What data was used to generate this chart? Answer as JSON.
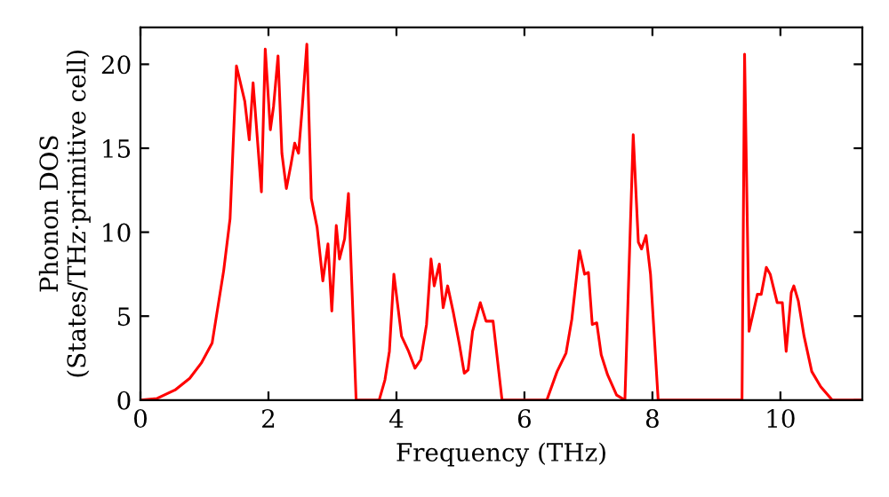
{
  "chart_data": {
    "type": "line",
    "xlabel": "Frequency (THz)",
    "ylabel": "Phonon DOS\n(States/THz·primitive cell)",
    "x": [
      0,
      0.26,
      0.54,
      0.77,
      0.95,
      1.12,
      1.3,
      1.4,
      1.5,
      1.63,
      1.7,
      1.76,
      1.89,
      1.95,
      2.03,
      2.08,
      2.15,
      2.21,
      2.28,
      2.35,
      2.41,
      2.47,
      2.53,
      2.6,
      2.67,
      2.76,
      2.85,
      2.93,
      2.99,
      3.06,
      3.11,
      3.19,
      3.25,
      3.37,
      3.73,
      3.82,
      3.89,
      3.96,
      4.08,
      4.19,
      4.29,
      4.38,
      4.47,
      4.54,
      4.59,
      4.67,
      4.73,
      4.8,
      4.89,
      4.98,
      5.06,
      5.12,
      5.19,
      5.31,
      5.4,
      5.51,
      5.65,
      6.35,
      6.51,
      6.65,
      6.74,
      6.86,
      6.94,
      7.0,
      7.06,
      7.13,
      7.2,
      7.3,
      7.44,
      7.57,
      7.7,
      7.78,
      7.83,
      7.9,
      7.97,
      8.09,
      9.4,
      9.44,
      9.51,
      9.64,
      9.7,
      9.78,
      9.84,
      9.95,
      10.03,
      10.09,
      10.17,
      10.21,
      10.28,
      10.37,
      10.49,
      10.63,
      10.81,
      11.28
    ],
    "series": [
      {
        "color": "#ff0000",
        "values": [
          0,
          0.1,
          0.6,
          1.3,
          2.2,
          3.4,
          7.7,
          10.8,
          19.9,
          17.8,
          15.5,
          18.9,
          12.4,
          20.9,
          16.1,
          17.5,
          20.5,
          14.7,
          12.6,
          14.0,
          15.3,
          14.7,
          17.5,
          21.2,
          12.0,
          10.3,
          7.1,
          9.3,
          5.3,
          10.4,
          8.4,
          9.6,
          12.3,
          0,
          0,
          1.2,
          2.9,
          7.5,
          3.8,
          2.9,
          1.9,
          2.4,
          4.5,
          8.4,
          6.8,
          8.1,
          5.5,
          6.8,
          5.2,
          3.4,
          1.6,
          1.8,
          4.1,
          5.8,
          4.7,
          4.7,
          0,
          0,
          1.7,
          2.8,
          4.8,
          8.9,
          7.5,
          7.6,
          4.5,
          4.6,
          2.7,
          1.5,
          0.3,
          0,
          15.8,
          9.4,
          9.0,
          9.8,
          7.5,
          0,
          0,
          20.6,
          4.1,
          6.3,
          6.3,
          7.9,
          7.5,
          5.8,
          5.8,
          2.9,
          6.4,
          6.8,
          5.9,
          3.8,
          1.7,
          0.8,
          0,
          0
        ]
      }
    ],
    "xlim": [
      0,
      11.28
    ],
    "ylim": [
      0,
      22.2
    ],
    "xticks": [
      0,
      2,
      4,
      6,
      8,
      10
    ],
    "yticks": [
      0,
      5,
      10,
      15,
      20
    ],
    "line_style": "solid",
    "marker": "none",
    "grid": false
  }
}
